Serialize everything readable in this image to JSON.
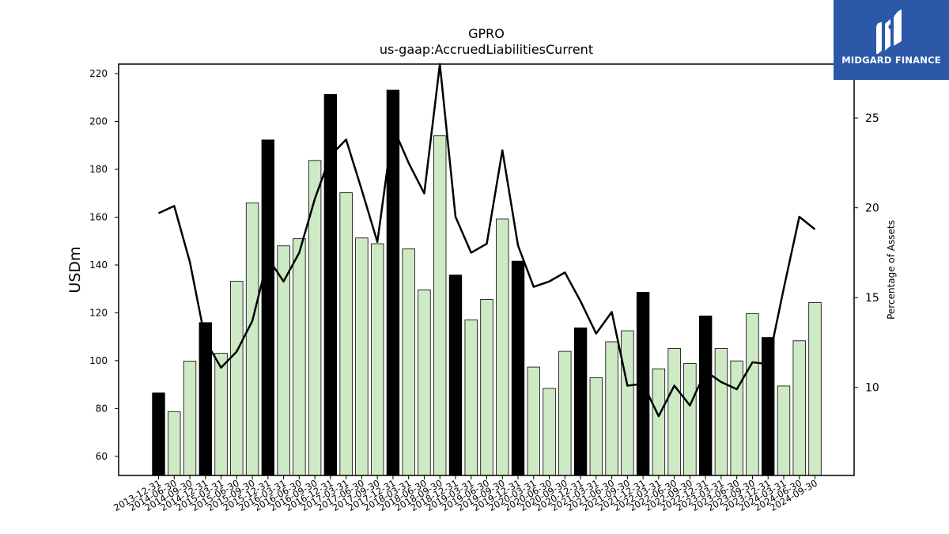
{
  "brand": {
    "name": "MIDGARD FINANCE",
    "color": "#2b59a8"
  },
  "chart_data": {
    "type": "bar",
    "title": "GPRO",
    "subtitle": "us-gaap:AccruedLiabilitiesCurrent",
    "ylabel": "USDm",
    "y2label": "Percentage of Assets",
    "ylim": [
      52,
      224
    ],
    "y2lim": [
      5.1,
      28.0
    ],
    "yticks": [
      60,
      80,
      100,
      120,
      140,
      160,
      180,
      200,
      220
    ],
    "y2ticks": [
      10,
      15,
      20,
      25
    ],
    "grid": false,
    "colors": {
      "bar_q4": "#000000",
      "bar_other": "#cdeac5",
      "line": "#000000"
    },
    "categories": [
      "2013-12-31",
      "2014-06-30",
      "2014-09-30",
      "2014-12-31",
      "2015-03-31",
      "2015-06-30",
      "2015-09-30",
      "2015-12-31",
      "2016-03-31",
      "2016-06-30",
      "2016-09-30",
      "2016-12-31",
      "2017-03-31",
      "2017-06-30",
      "2017-09-30",
      "2017-12-31",
      "2018-03-31",
      "2018-06-30",
      "2018-09-30",
      "2018-12-31",
      "2019-03-31",
      "2019-06-30",
      "2019-09-30",
      "2019-12-31",
      "2020-03-31",
      "2020-06-30",
      "2020-09-30",
      "2020-12-31",
      "2021-03-31",
      "2021-06-30",
      "2021-09-30",
      "2021-12-31",
      "2022-03-31",
      "2022-06-30",
      "2022-09-30",
      "2022-12-31",
      "2023-03-31",
      "2023-06-30",
      "2023-09-30",
      "2023-12-31",
      "2024-03-31",
      "2024-06-30",
      "2024-09-30"
    ],
    "series": [
      {
        "type": "bar",
        "values": [
          86.5,
          78.7,
          99.8,
          115.9,
          103.1,
          133.2,
          165.9,
          192.3,
          148.0,
          151.0,
          183.7,
          211.3,
          170.2,
          151.3,
          148.9,
          213.1,
          146.7,
          129.6,
          194.0,
          135.8,
          117.1,
          125.6,
          159.2,
          141.6,
          97.3,
          88.4,
          103.9,
          113.7,
          92.9,
          107.9,
          112.5,
          128.6,
          96.6,
          105.1,
          98.8,
          118.7,
          105.1,
          99.9,
          119.7,
          109.7,
          89.4,
          108.3,
          124.3
        ]
      },
      {
        "type": "line",
        "axis": "right",
        "values": [
          19.7,
          20.1,
          17.0,
          12.6,
          11.1,
          12.0,
          13.7,
          17.2,
          15.9,
          17.5,
          20.5,
          22.9,
          23.8,
          21.0,
          18.1,
          24.5,
          22.5,
          20.8,
          28.0,
          19.5,
          17.5,
          18.0,
          23.2,
          17.9,
          15.6,
          15.9,
          16.4,
          14.8,
          13.0,
          14.2,
          10.1,
          10.2,
          8.4,
          10.1,
          9.0,
          10.9,
          10.3,
          9.9,
          11.4,
          11.3,
          15.5,
          19.5,
          18.8
        ]
      }
    ]
  }
}
